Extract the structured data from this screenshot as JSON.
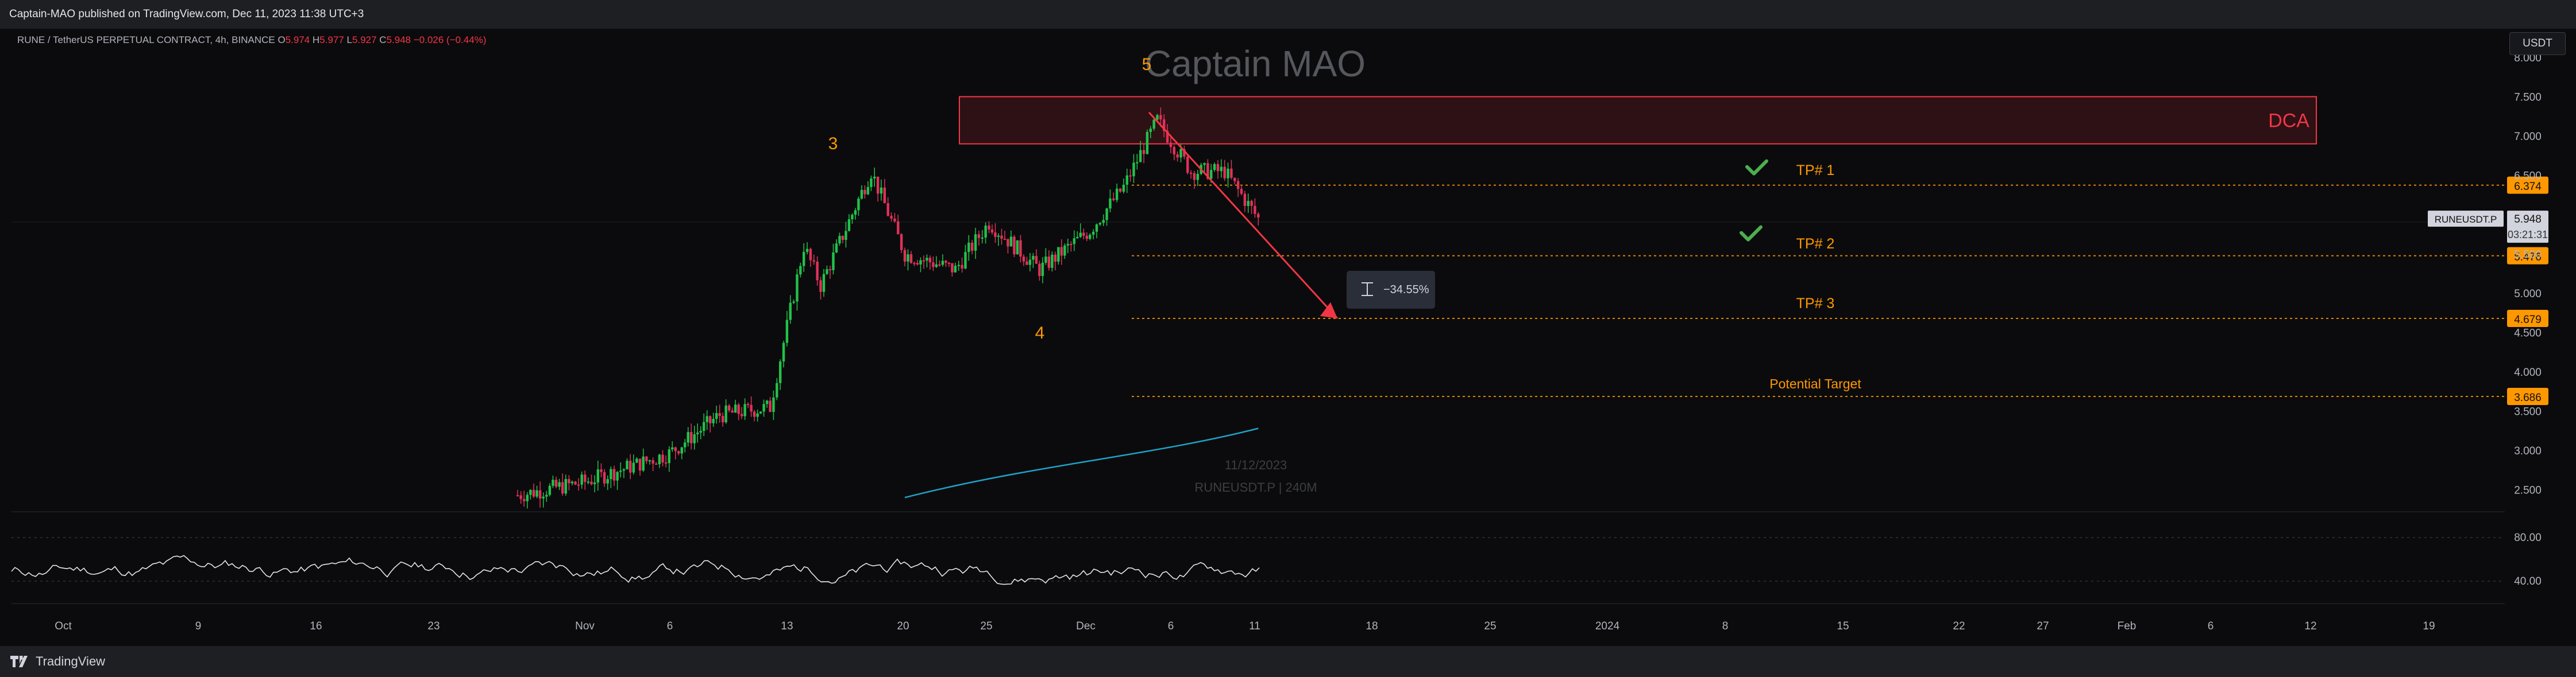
{
  "header": {
    "published": "Captain-MAO published on TradingView.com, Dec 11, 2023 11:38 UTC+3"
  },
  "symbol": {
    "title": "RUNE / TetherUS PERPETUAL CONTRACT, 4h, BINANCE",
    "open_label": "O",
    "open": "5.974",
    "high_label": "H",
    "high": "5.977",
    "low_label": "L",
    "low": "5.927",
    "close_label": "C",
    "close": "5.948",
    "change": "−0.026 (−0.44%)"
  },
  "currency_button": "USDT",
  "branding": {
    "footer": "TradingView"
  },
  "chart_data": {
    "type": "candlestick",
    "title": "",
    "watermark": "Captain MAO",
    "price_axis": {
      "min": 2.4,
      "max": 8.0,
      "ticks": [
        "8.000",
        "7.500",
        "7.000",
        "6.500",
        "6.000",
        "5.500",
        "5.000",
        "4.500",
        "4.000",
        "3.500",
        "3.000",
        "2.500"
      ]
    },
    "time_axis": {
      "labels": [
        "Oct",
        "9",
        "16",
        "23",
        "Nov",
        "6",
        "13",
        "20",
        "25",
        "Dec",
        "6",
        "11",
        "18",
        "25",
        "2024",
        "8",
        "15",
        "22",
        "27",
        "Feb",
        "6",
        "12",
        "19"
      ]
    },
    "candles_4h_close_anchors": [
      {
        "date": "2023-10-28",
        "close": 2.43
      },
      {
        "date": "2023-11-01",
        "close": 2.6
      },
      {
        "date": "2023-11-06",
        "close": 2.96
      },
      {
        "date": "2023-11-09",
        "close": 3.45
      },
      {
        "date": "2023-11-12",
        "close": 3.55
      },
      {
        "date": "2023-11-14",
        "close": 5.6
      },
      {
        "date": "2023-11-15",
        "close": 5.1
      },
      {
        "date": "2023-11-18",
        "close": 6.55
      },
      {
        "date": "2023-11-20",
        "close": 5.5
      },
      {
        "date": "2023-11-23",
        "close": 5.3
      },
      {
        "date": "2023-11-25",
        "close": 5.9
      },
      {
        "date": "2023-11-28",
        "close": 5.3
      },
      {
        "date": "2023-12-01",
        "close": 5.8
      },
      {
        "date": "2023-12-03",
        "close": 6.35
      },
      {
        "date": "2023-12-05",
        "close": 7.2
      },
      {
        "date": "2023-12-07",
        "close": 6.55
      },
      {
        "date": "2023-12-09",
        "close": 6.55
      },
      {
        "date": "2023-12-11",
        "close": 5.948
      }
    ],
    "moving_average": [
      {
        "date": "2023-11-20",
        "value": 2.4
      },
      {
        "date": "2023-12-11",
        "value": 3.28
      }
    ],
    "rsi_axis": {
      "ticks": [
        "80.00",
        "40.00"
      ]
    },
    "annotations": {
      "wave_labels": [
        "3",
        "4",
        "5"
      ],
      "zone_label": "DCA",
      "zone_range": [
        6.9,
        7.5
      ],
      "targets": [
        {
          "label": "TP# 1",
          "price": "6.374",
          "checked": true
        },
        {
          "label": "TP# 2",
          "price": "5.476",
          "checked": true
        },
        {
          "label": "TP# 3",
          "price": "4.679",
          "checked": false
        },
        {
          "label": "Potential Target",
          "price": "3.686",
          "checked": false
        }
      ],
      "measure_label": "−34.55%",
      "last_price": "5.948",
      "symbol_tag": "RUNEUSDT.P",
      "countdown": "03:21:31",
      "date_stamp": "11/12/2023",
      "symbol_interval": "RUNEUSDT.P | 240M"
    },
    "colors": {
      "up": "#26a69a",
      "down": "#ef5350",
      "candle_up": "#21c24a",
      "candle_down": "#e0315a",
      "target": "#ff9800",
      "zone": "#f23645",
      "ma": "#1fa3c8",
      "rsi": "#e6e6e6",
      "check": "#4caf50"
    }
  }
}
